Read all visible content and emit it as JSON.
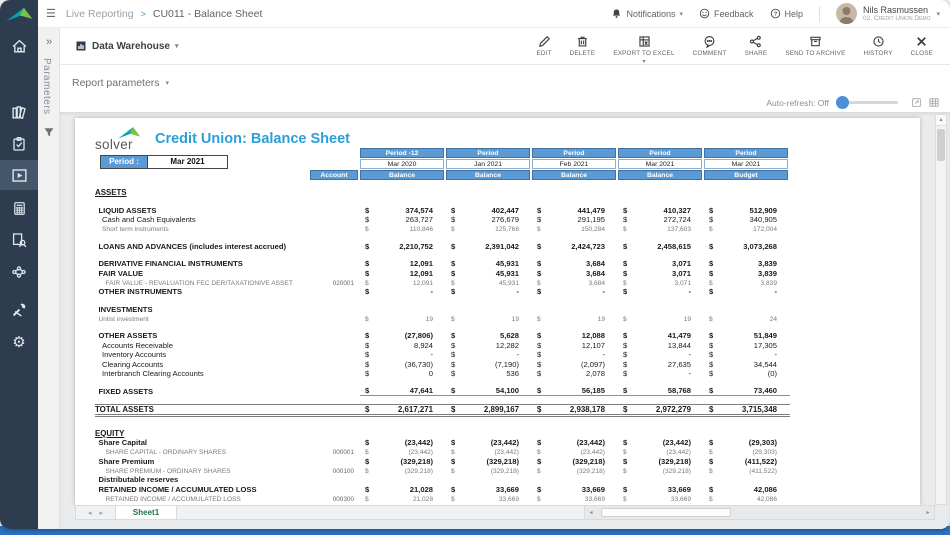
{
  "icons": {
    "menu": "☰",
    "chevron_down": "▾",
    "up_arrow": "▴",
    "left_arrow": "◂",
    "right_arrow": "▸",
    "expand": "»",
    "close_glyph": "✖"
  },
  "topbar": {
    "breadcrumb": {
      "section": "Live Reporting",
      "separator": ">",
      "page": "CU011 - Balance Sheet"
    },
    "notifications_label": "Notifications",
    "feedback_label": "Feedback",
    "help_label": "Help",
    "user_name": "Nils Rasmussen",
    "user_org": "02. Credit Union Demo"
  },
  "actionbar": {
    "source_label": "Data Warehouse",
    "actions": [
      {
        "id": "edit",
        "label": "EDIT"
      },
      {
        "id": "delete",
        "label": "DELETE"
      },
      {
        "id": "export-to-excel",
        "label": "EXPORT TO EXCEL",
        "has_dropdown": true
      },
      {
        "id": "comment",
        "label": "COMMENT"
      },
      {
        "id": "share",
        "label": "SHARE"
      },
      {
        "id": "send-to-archive",
        "label": "SEND TO ARCHIVE"
      },
      {
        "id": "history",
        "label": "HISTORY"
      },
      {
        "id": "close",
        "label": "CLOSE"
      }
    ]
  },
  "paramsbar": {
    "label": "Report parameters",
    "auto_refresh_label": "Auto-refresh: Off"
  },
  "parameters_panel": {
    "title": "Parameters"
  },
  "report": {
    "logo_text": "solver",
    "title": "Credit Union: Balance Sheet",
    "period_label": "Period :",
    "period_value": "Mar 2021",
    "currency": "$",
    "table": {
      "account_header": "Account",
      "columns": [
        {
          "period": "Period -12",
          "date": "Mar 2020",
          "measure": "Balance"
        },
        {
          "period": "Period",
          "date": "Jan 2021",
          "measure": "Balance"
        },
        {
          "period": "Period",
          "date": "Feb 2021",
          "measure": "Balance"
        },
        {
          "period": "Period",
          "date": "Mar 2021",
          "measure": "Balance"
        },
        {
          "period": "Period",
          "date": "Mar 2021",
          "measure": "Budget"
        }
      ],
      "rows": [
        {
          "style": "section",
          "indent": 0,
          "label": "ASSETS"
        },
        {
          "style": "blank"
        },
        {
          "style": "bold",
          "indent": 1,
          "label": "LIQUID ASSETS",
          "values": [
            "374,574",
            "402,447",
            "441,479",
            "410,327",
            "512,909"
          ]
        },
        {
          "style": "normal",
          "indent": 2,
          "label": "Cash and Cash Equivalents",
          "values": [
            "263,727",
            "276,679",
            "291,195",
            "272,724",
            "340,905"
          ]
        },
        {
          "style": "detail",
          "indent": 2,
          "label": "Short term instruments",
          "values": [
            "110,846",
            "125,768",
            "150,284",
            "137,603",
            "172,004"
          ]
        },
        {
          "style": "blank"
        },
        {
          "style": "bold",
          "indent": 1,
          "label": "LOANS AND ADVANCES (includes interest accrued)",
          "values": [
            "2,210,752",
            "2,391,042",
            "2,424,723",
            "2,458,615",
            "3,073,268"
          ]
        },
        {
          "style": "blank"
        },
        {
          "style": "bold",
          "indent": 1,
          "label": "DERIVATIVE FINANCIAL INSTRUMENTS",
          "values": [
            "12,091",
            "45,931",
            "3,684",
            "3,071",
            "3,839"
          ]
        },
        {
          "style": "bold",
          "indent": 1,
          "label": "FAIR VALUE",
          "values": [
            "12,091",
            "45,931",
            "3,684",
            "3,071",
            "3,839"
          ]
        },
        {
          "style": "detail",
          "indent": 3,
          "label": "FAIR VALUE - REVALUATION FEC DERITAXATIONIVE ASSET",
          "account": "020001",
          "values": [
            "12,091",
            "45,931",
            "3,684",
            "3,071",
            "3,839"
          ]
        },
        {
          "style": "bold",
          "indent": 1,
          "label": "OTHER INSTRUMENTS",
          "values": [
            "-",
            "-",
            "-",
            "-",
            "-"
          ]
        },
        {
          "style": "blank"
        },
        {
          "style": "bold",
          "indent": 1,
          "label": "INVESTMENTS"
        },
        {
          "style": "detail",
          "indent": 1,
          "label": "Unlist investment",
          "values": [
            "19",
            "19",
            "19",
            "19",
            "24"
          ]
        },
        {
          "style": "blank"
        },
        {
          "style": "bold",
          "indent": 1,
          "label": "OTHER ASSETS",
          "values": [
            "(27,806)",
            "5,628",
            "12,088",
            "41,479",
            "51,849"
          ]
        },
        {
          "style": "normal",
          "indent": 2,
          "label": "Accounts Receivable",
          "values": [
            "8,924",
            "12,282",
            "12,107",
            "13,844",
            "17,305"
          ]
        },
        {
          "style": "normal",
          "indent": 2,
          "label": "Inventory Accounts",
          "values": [
            "-",
            "-",
            "-",
            "-",
            "-"
          ]
        },
        {
          "style": "normal",
          "indent": 2,
          "label": "Clearing Accounts",
          "values": [
            "(36,730)",
            "(7,190)",
            "(2,097)",
            "27,635",
            "34,544"
          ]
        },
        {
          "style": "normal",
          "indent": 2,
          "label": "Interbranch Clearing Accounts",
          "values": [
            "0",
            "536",
            "2,078",
            "-",
            "(0)"
          ]
        },
        {
          "style": "blank"
        },
        {
          "style": "bold",
          "indent": 1,
          "label": "FIXED ASSETS",
          "uval": true,
          "values": [
            "47,641",
            "54,100",
            "56,185",
            "58,768",
            "73,460"
          ]
        },
        {
          "style": "blank"
        },
        {
          "style": "total",
          "indent": 0,
          "label": "TOTAL ASSETS",
          "values": [
            "2,617,271",
            "2,899,167",
            "2,938,178",
            "2,972,279",
            "3,715,348"
          ]
        },
        {
          "style": "blank"
        },
        {
          "style": "section",
          "indent": 0,
          "label": "EQUITY"
        },
        {
          "style": "bold",
          "indent": 1,
          "label": "Share Capital",
          "values": [
            "(23,442)",
            "(23,442)",
            "(23,442)",
            "(23,442)",
            "(29,303)"
          ]
        },
        {
          "style": "detail",
          "indent": 3,
          "label": "SHARE CAPITAL - ORDINARY SHARES",
          "account": "000001",
          "values": [
            "(23,442)",
            "(23,442)",
            "(23,442)",
            "(23,442)",
            "(29,303)"
          ]
        },
        {
          "style": "bold",
          "indent": 1,
          "label": "Share Premium",
          "values": [
            "(329,218)",
            "(329,218)",
            "(329,218)",
            "(329,218)",
            "(411,522)"
          ]
        },
        {
          "style": "detail",
          "indent": 3,
          "label": "SHARE PREMIUM - ORDINARY SHARES",
          "account": "000100",
          "values": [
            "(329,218)",
            "(329,218)",
            "(329,218)",
            "(329,218)",
            "(411,522)"
          ]
        },
        {
          "style": "bold",
          "indent": 1,
          "label": "Distributable reserves"
        },
        {
          "style": "bold",
          "indent": 1,
          "label": "RETAINED INCOME / ACCUMULATED LOSS",
          "values": [
            "21,028",
            "33,669",
            "33,669",
            "33,669",
            "42,086"
          ]
        },
        {
          "style": "detail",
          "indent": 3,
          "label": "RETAINED INCOME / ACCUMULATED LOSS",
          "account": "000300",
          "values": [
            "21,028",
            "33,669",
            "33,669",
            "33,669",
            "42,086"
          ]
        }
      ]
    }
  },
  "sheetbar": {
    "tab": "Sheet1"
  },
  "colors": {
    "header_blue": "#5b9bd5",
    "title_blue": "#2b9fd8",
    "sidebar": "#2d3c4e",
    "sheet_tab_green": "#217346"
  }
}
